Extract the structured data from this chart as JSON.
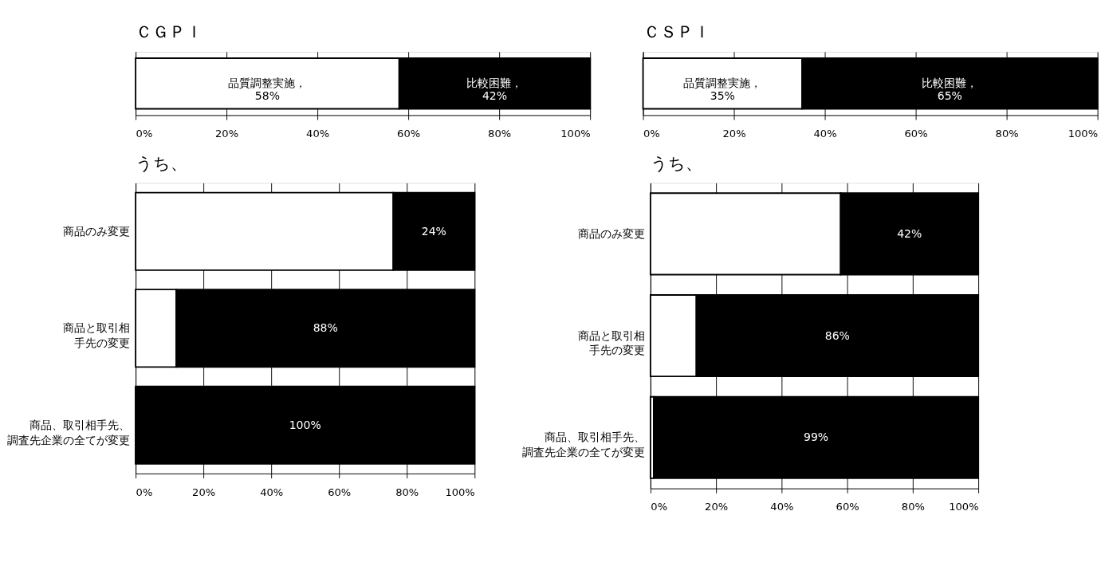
{
  "chart_data": [
    {
      "type": "bar",
      "orientation": "horizontal",
      "stacked": true,
      "title": "ＣＧＰＩ",
      "categories": [
        null
      ],
      "series": [
        {
          "color": "#ffffff",
          "values": [
            58
          ],
          "value_labels": [
            "品質調整実施，\n58%"
          ]
        },
        {
          "color": "#000000",
          "values": [
            42
          ],
          "value_labels": [
            "比較困難，\n42%"
          ]
        }
      ],
      "xlim": [
        0,
        100
      ],
      "xticks": [
        {
          "value": 0,
          "label": "0%"
        },
        {
          "value": 20,
          "label": "20%"
        },
        {
          "value": 40,
          "label": "40%"
        },
        {
          "value": 60,
          "label": "60%"
        },
        {
          "value": 80,
          "label": "80%"
        },
        {
          "value": 100,
          "label": "100%"
        }
      ],
      "grid": "x"
    },
    {
      "type": "bar",
      "orientation": "horizontal",
      "stacked": true,
      "title": "ＣＳＰＩ",
      "categories": [
        null
      ],
      "series": [
        {
          "color": "#ffffff",
          "values": [
            35
          ],
          "value_labels": [
            "品質調整実施，35%"
          ]
        },
        {
          "color": "#000000",
          "values": [
            65
          ],
          "value_labels": [
            "比較困難，\n65%"
          ]
        }
      ],
      "xlim": [
        0,
        100
      ],
      "xticks": [
        {
          "value": 0,
          "label": "0%"
        },
        {
          "value": 20,
          "label": "20%"
        },
        {
          "value": 40,
          "label": "40%"
        },
        {
          "value": 60,
          "label": "60%"
        },
        {
          "value": 80,
          "label": "80%"
        },
        {
          "value": 100,
          "label": "100%"
        }
      ],
      "grid": "x"
    },
    {
      "type": "bar",
      "orientation": "horizontal",
      "stacked": true,
      "title": "うち、",
      "categories": [
        "商品のみ変更",
        "商品と取引相手先の変更",
        "商品、取引相手先、調査先企業の全てが変更"
      ],
      "series": [
        {
          "color": "#ffffff",
          "values": [
            76,
            12,
            0
          ],
          "value_labels": [
            null,
            null,
            null
          ]
        },
        {
          "color": "#000000",
          "values": [
            24,
            88,
            100
          ],
          "value_labels": [
            "24%",
            "88%",
            "100%"
          ]
        }
      ],
      "xlim": [
        0,
        100
      ],
      "xticks": [
        {
          "value": 0,
          "label": "0%"
        },
        {
          "value": 20,
          "label": "20%"
        },
        {
          "value": 40,
          "label": "40%"
        },
        {
          "value": 60,
          "label": "60%"
        },
        {
          "value": 80,
          "label": "80%"
        },
        {
          "value": 100,
          "label": "100%"
        }
      ],
      "grid": "x"
    },
    {
      "type": "bar",
      "orientation": "horizontal",
      "stacked": true,
      "title": "うち、",
      "categories": [
        "商品のみ変更",
        "商品と取引相手先の変更",
        "商品、取引相手先、調査先企業の全てが変更"
      ],
      "series": [
        {
          "color": "#ffffff",
          "values": [
            58,
            14,
            1
          ],
          "value_labels": [
            null,
            null,
            null
          ]
        },
        {
          "color": "#000000",
          "values": [
            42,
            86,
            99
          ],
          "value_labels": [
            "42%",
            "86%",
            "99%"
          ]
        }
      ],
      "xlim": [
        0,
        100
      ],
      "xticks": [
        {
          "value": 0,
          "label": "0%"
        },
        {
          "value": 20,
          "label": "20%"
        },
        {
          "value": 40,
          "label": "40%"
        },
        {
          "value": 60,
          "label": "60%"
        },
        {
          "value": 80,
          "label": "80%"
        },
        {
          "value": 100,
          "label": "100%"
        }
      ],
      "grid": "x"
    }
  ]
}
